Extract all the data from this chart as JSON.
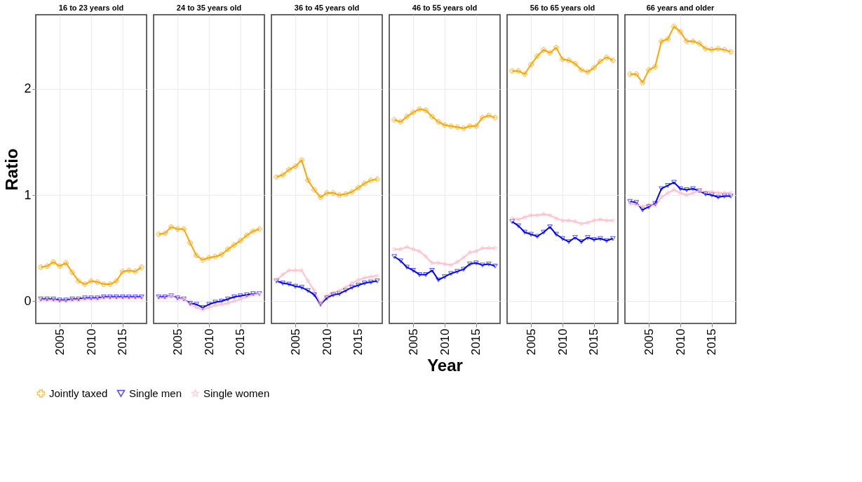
{
  "chart_data": [
    {
      "type": "line",
      "title": "16 to 23 years old",
      "ylabel": "Ratio",
      "x": [
        2002,
        2003,
        2004,
        2005,
        2006,
        2007,
        2008,
        2009,
        2010,
        2011,
        2012,
        2013,
        2014,
        2015,
        2016,
        2017,
        2018
      ],
      "xlim": [
        2001.2,
        2018.8
      ],
      "xticks": [
        2005,
        2010,
        2015
      ],
      "ylim": [
        -0.21,
        2.7
      ],
      "yticks": [
        0,
        1,
        2
      ],
      "grid": true,
      "legend": "bottom",
      "series": [
        {
          "name": "Jointly taxed",
          "color": "#ffa500",
          "marker": "cross",
          "values": [
            0.32,
            0.33,
            0.37,
            0.33,
            0.36,
            0.27,
            0.19,
            0.16,
            0.19,
            0.18,
            0.16,
            0.16,
            0.19,
            0.28,
            0.29,
            0.28,
            0.32
          ]
        },
        {
          "name": "Single men",
          "color": "#0000ff",
          "marker": "triangle",
          "values": [
            0.02,
            0.02,
            0.02,
            0.01,
            0.01,
            0.02,
            0.02,
            0.03,
            0.03,
            0.03,
            0.04,
            0.04,
            0.04,
            0.04,
            0.04,
            0.04,
            0.04
          ]
        },
        {
          "name": "Single women",
          "color": "#ffc0cb",
          "marker": "star",
          "values": [
            0.01,
            0.01,
            0.01,
            0.0,
            0.0,
            0.01,
            0.01,
            0.02,
            0.02,
            0.02,
            0.03,
            0.03,
            0.03,
            0.03,
            0.03,
            0.03,
            0.03
          ]
        }
      ]
    },
    {
      "type": "line",
      "title": "24 to 35 years old",
      "x": [
        2002,
        2003,
        2004,
        2005,
        2006,
        2007,
        2008,
        2009,
        2010,
        2011,
        2012,
        2013,
        2014,
        2015,
        2016,
        2017,
        2018
      ],
      "xlim": [
        2001.2,
        2018.8
      ],
      "xticks": [
        2005,
        2010,
        2015
      ],
      "ylim": [
        -0.21,
        2.7
      ],
      "yticks": [
        0,
        1,
        2
      ],
      "tick_labels": "x",
      "grid": true,
      "legend": "bottom",
      "series": [
        {
          "name": "Jointly taxed",
          "color": "#ffa500",
          "marker": "cross",
          "values": [
            0.63,
            0.64,
            0.7,
            0.68,
            0.68,
            0.55,
            0.43,
            0.39,
            0.41,
            0.42,
            0.44,
            0.49,
            0.53,
            0.57,
            0.62,
            0.66,
            0.68
          ]
        },
        {
          "name": "Single men",
          "color": "#0000ff",
          "marker": "triangle",
          "values": [
            0.04,
            0.04,
            0.05,
            0.03,
            0.02,
            -0.02,
            -0.03,
            -0.06,
            -0.03,
            -0.01,
            0.0,
            0.02,
            0.04,
            0.05,
            0.06,
            0.07,
            0.07
          ]
        },
        {
          "name": "Single women",
          "color": "#ffc0cb",
          "marker": "star",
          "values": [
            0.03,
            0.03,
            0.05,
            0.02,
            0.02,
            -0.03,
            -0.06,
            -0.08,
            -0.06,
            -0.04,
            -0.03,
            -0.02,
            0.0,
            0.02,
            0.04,
            0.06,
            0.07
          ]
        }
      ]
    },
    {
      "type": "line",
      "title": "36 to 45 years old",
      "x": [
        2002,
        2003,
        2004,
        2005,
        2006,
        2007,
        2008,
        2009,
        2010,
        2011,
        2012,
        2013,
        2014,
        2015,
        2016,
        2017,
        2018
      ],
      "xlim": [
        2001.2,
        2018.8
      ],
      "xticks": [
        2005,
        2010,
        2015
      ],
      "ylim": [
        -0.21,
        2.7
      ],
      "yticks": [
        0,
        1,
        2
      ],
      "tick_labels": "x",
      "grid": true,
      "legend": "bottom",
      "series": [
        {
          "name": "Jointly taxed",
          "color": "#ffa500",
          "marker": "cross",
          "values": [
            1.17,
            1.19,
            1.24,
            1.27,
            1.33,
            1.14,
            1.05,
            0.98,
            1.02,
            1.02,
            1.0,
            1.01,
            1.03,
            1.07,
            1.11,
            1.14,
            1.15
          ]
        },
        {
          "name": "Single men",
          "color": "#0000ff",
          "marker": "triangle",
          "values": [
            0.19,
            0.17,
            0.16,
            0.14,
            0.13,
            0.1,
            0.06,
            -0.03,
            0.03,
            0.06,
            0.07,
            0.1,
            0.13,
            0.15,
            0.17,
            0.18,
            0.19
          ]
        },
        {
          "name": "Single women",
          "color": "#ffc0cb",
          "marker": "star",
          "values": [
            0.2,
            0.25,
            0.29,
            0.29,
            0.29,
            0.19,
            0.1,
            -0.02,
            0.05,
            0.08,
            0.1,
            0.13,
            0.17,
            0.2,
            0.22,
            0.23,
            0.24
          ]
        }
      ]
    },
    {
      "type": "line",
      "title": "46 to 55 years old",
      "xlabel": "Year",
      "x": [
        2002,
        2003,
        2004,
        2005,
        2006,
        2007,
        2008,
        2009,
        2010,
        2011,
        2012,
        2013,
        2014,
        2015,
        2016,
        2017,
        2018
      ],
      "xlim": [
        2001.2,
        2018.8
      ],
      "xticks": [
        2005,
        2010,
        2015
      ],
      "ylim": [
        -0.21,
        2.7
      ],
      "yticks": [
        0,
        1,
        2
      ],
      "tick_labels": "x",
      "grid": true,
      "legend": "bottom",
      "series": [
        {
          "name": "Jointly taxed",
          "color": "#ffa500",
          "marker": "cross",
          "values": [
            1.71,
            1.69,
            1.74,
            1.78,
            1.81,
            1.8,
            1.74,
            1.69,
            1.66,
            1.65,
            1.64,
            1.63,
            1.65,
            1.65,
            1.73,
            1.75,
            1.73
          ]
        },
        {
          "name": "Single men",
          "color": "#0000ff",
          "marker": "triangle",
          "values": [
            0.42,
            0.38,
            0.32,
            0.29,
            0.25,
            0.25,
            0.29,
            0.2,
            0.23,
            0.26,
            0.28,
            0.3,
            0.35,
            0.36,
            0.34,
            0.35,
            0.33
          ]
        },
        {
          "name": "Single women",
          "color": "#ffc0cb",
          "marker": "star",
          "values": [
            0.49,
            0.49,
            0.51,
            0.49,
            0.47,
            0.42,
            0.36,
            0.36,
            0.35,
            0.34,
            0.37,
            0.41,
            0.46,
            0.47,
            0.5,
            0.5,
            0.5
          ]
        }
      ]
    },
    {
      "type": "line",
      "title": "56 to 65 years old",
      "x": [
        2002,
        2003,
        2004,
        2005,
        2006,
        2007,
        2008,
        2009,
        2010,
        2011,
        2012,
        2013,
        2014,
        2015,
        2016,
        2017,
        2018
      ],
      "xlim": [
        2001.2,
        2018.8
      ],
      "xticks": [
        2005,
        2010,
        2015
      ],
      "ylim": [
        -0.21,
        2.7
      ],
      "yticks": [
        0,
        1,
        2
      ],
      "tick_labels": "x",
      "grid": true,
      "legend": "bottom",
      "series": [
        {
          "name": "Jointly taxed",
          "color": "#ffa500",
          "marker": "cross",
          "values": [
            2.17,
            2.17,
            2.14,
            2.23,
            2.31,
            2.37,
            2.34,
            2.39,
            2.28,
            2.27,
            2.24,
            2.18,
            2.16,
            2.2,
            2.26,
            2.3,
            2.27
          ]
        },
        {
          "name": "Single men",
          "color": "#0000ff",
          "marker": "triangle",
          "values": [
            0.75,
            0.71,
            0.65,
            0.63,
            0.61,
            0.65,
            0.7,
            0.63,
            0.59,
            0.56,
            0.6,
            0.56,
            0.6,
            0.58,
            0.59,
            0.57,
            0.59
          ]
        },
        {
          "name": "Single women",
          "color": "#ffc0cb",
          "marker": "star",
          "values": [
            0.78,
            0.77,
            0.79,
            0.81,
            0.81,
            0.82,
            0.81,
            0.78,
            0.76,
            0.76,
            0.75,
            0.73,
            0.74,
            0.76,
            0.77,
            0.76,
            0.76
          ]
        }
      ]
    },
    {
      "type": "line",
      "title": "66 years and older",
      "x": [
        2002,
        2003,
        2004,
        2005,
        2006,
        2007,
        2008,
        2009,
        2010,
        2011,
        2012,
        2013,
        2014,
        2015,
        2016,
        2017,
        2018
      ],
      "xlim": [
        2001.2,
        2018.8
      ],
      "xticks": [
        2005,
        2010,
        2015
      ],
      "ylim": [
        -0.21,
        2.7
      ],
      "yticks": [
        0,
        1,
        2
      ],
      "tick_labels": "x",
      "grid": true,
      "legend": "bottom",
      "series": [
        {
          "name": "Jointly taxed",
          "color": "#ffa500",
          "marker": "cross",
          "values": [
            2.14,
            2.14,
            2.06,
            2.18,
            2.21,
            2.45,
            2.47,
            2.59,
            2.54,
            2.45,
            2.45,
            2.43,
            2.38,
            2.37,
            2.38,
            2.37,
            2.35
          ]
        },
        {
          "name": "Single men",
          "color": "#0000ff",
          "marker": "triangle",
          "values": [
            0.94,
            0.93,
            0.86,
            0.89,
            0.92,
            1.06,
            1.09,
            1.12,
            1.06,
            1.05,
            1.06,
            1.04,
            1.01,
            1.0,
            0.98,
            0.99,
            0.99
          ]
        },
        {
          "name": "Single women",
          "color": "#ffc0cb",
          "marker": "star",
          "values": [
            0.92,
            0.91,
            0.89,
            0.91,
            0.9,
            0.98,
            1.02,
            1.05,
            1.02,
            1.0,
            1.02,
            1.04,
            1.03,
            1.03,
            1.02,
            1.02,
            1.02
          ]
        }
      ]
    }
  ]
}
